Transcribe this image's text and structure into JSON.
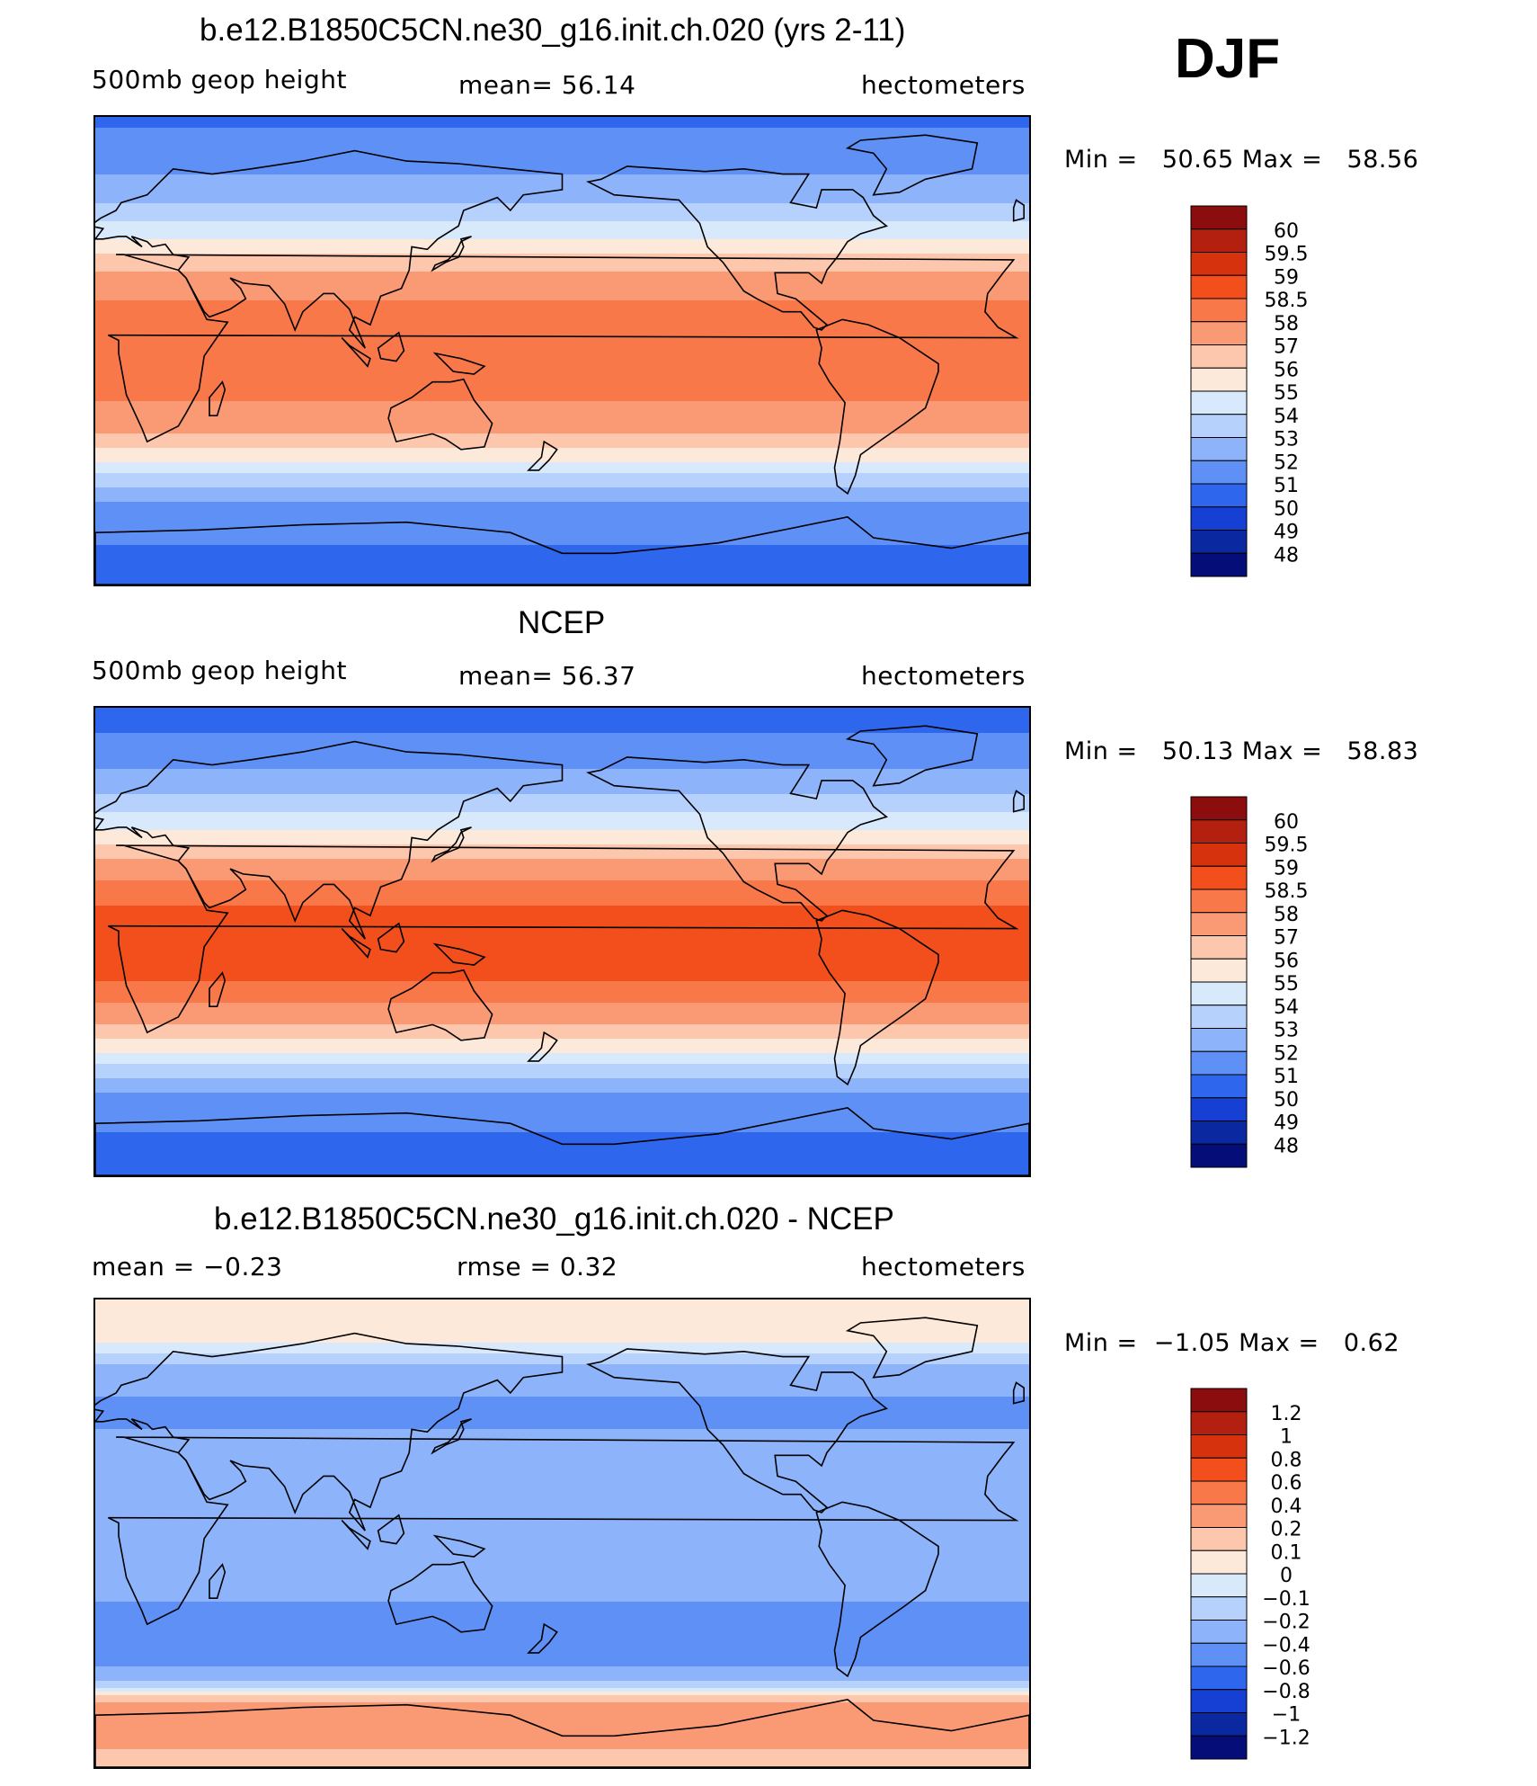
{
  "season": "DJF",
  "panels": [
    {
      "id": "model",
      "title": "b.e12.B1850C5CN.ne30_g16.init.ch.020 (yrs 2-11)",
      "left_label": "500mb geop height",
      "center_label": "mean=  56.14",
      "right_label": "hectometers",
      "minmax": "Min =   50.65 Max =   58.56",
      "colorbar_labels": [
        "60",
        "59.5",
        "59",
        "58.5",
        "58",
        "57",
        "56",
        "55",
        "54",
        "53",
        "52",
        "51",
        "50",
        "49",
        "48"
      ]
    },
    {
      "id": "ncep",
      "title": "NCEP",
      "left_label": "500mb geop height",
      "center_label": "mean=  56.37",
      "right_label": "hectometers",
      "minmax": "Min =   50.13 Max =   58.83",
      "colorbar_labels": [
        "60",
        "59.5",
        "59",
        "58.5",
        "58",
        "57",
        "56",
        "55",
        "54",
        "53",
        "52",
        "51",
        "50",
        "49",
        "48"
      ]
    },
    {
      "id": "diff",
      "title": "b.e12.B1850C5CN.ne30_g16.init.ch.020 - NCEP",
      "left_label": "mean =  −0.23",
      "center_label": "rmse =   0.32",
      "right_label": "hectometers",
      "minmax": "Min =  −1.05 Max =   0.62",
      "colorbar_labels": [
        "1.2",
        "1",
        "0.8",
        "0.6",
        "0.4",
        "0.2",
        "0.1",
        "0",
        "−0.1",
        "−0.2",
        "−0.4",
        "−0.6",
        "−0.8",
        "−1",
        "−1.2"
      ]
    }
  ],
  "colors": {
    "palette": [
      "#8c0d0d",
      "#b3200f",
      "#d6320e",
      "#f24f1c",
      "#f8784a",
      "#fa9a75",
      "#fcc7ad",
      "#fde9da",
      "#d8e9fb",
      "#b6d1fb",
      "#8db4fa",
      "#5e90f6",
      "#2f66ee",
      "#1640d4",
      "#0a28a0",
      "#040d78"
    ],
    "land_outline": "#000000"
  },
  "chart_data": [
    {
      "type": "heatmap",
      "title": "b.e12.B1850C5CN.ne30_g16.init.ch.020 (yrs 2-11)",
      "variable": "500mb geop height",
      "units": "hectometers",
      "mean": 56.14,
      "min": 50.65,
      "max": 58.56,
      "contour_levels": [
        48,
        49,
        50,
        51,
        52,
        53,
        54,
        55,
        56,
        57,
        58,
        58.5,
        59,
        59.5,
        60
      ],
      "zonal_profile": {
        "lat": [
          90,
          75,
          60,
          50,
          40,
          30,
          20,
          10,
          0,
          -10,
          -20,
          -30,
          -40,
          -50,
          -60,
          -75,
          -90
        ],
        "value": [
          50.8,
          51.5,
          52.6,
          53.9,
          55.5,
          57.1,
          58.0,
          58.2,
          58.3,
          58.2,
          58.0,
          57.2,
          55.5,
          53.4,
          51.7,
          51.0,
          50.8
        ]
      }
    },
    {
      "type": "heatmap",
      "title": "NCEP",
      "variable": "500mb geop height",
      "units": "hectometers",
      "mean": 56.37,
      "min": 50.13,
      "max": 58.83,
      "contour_levels": [
        48,
        49,
        50,
        51,
        52,
        53,
        54,
        55,
        56,
        57,
        58,
        58.5,
        59,
        59.5,
        60
      ],
      "zonal_profile": {
        "lat": [
          90,
          75,
          60,
          50,
          40,
          30,
          20,
          10,
          0,
          -10,
          -20,
          -30,
          -40,
          -50,
          -60,
          -75,
          -90
        ],
        "value": [
          50.4,
          51.3,
          52.5,
          53.9,
          55.6,
          57.3,
          58.3,
          58.6,
          58.7,
          58.6,
          58.4,
          57.4,
          55.6,
          53.4,
          51.6,
          50.9,
          50.6
        ]
      }
    },
    {
      "type": "heatmap",
      "title": "b.e12.B1850C5CN.ne30_g16.init.ch.020 - NCEP",
      "units": "hectometers",
      "mean": -0.23,
      "rmse": 0.32,
      "min": -1.05,
      "max": 0.62,
      "contour_levels": [
        -1.2,
        -1,
        -0.8,
        -0.6,
        -0.4,
        -0.2,
        -0.1,
        0,
        0.1,
        0.2,
        0.4,
        0.6,
        0.8,
        1,
        1.2
      ],
      "zonal_profile": {
        "lat": [
          90,
          75,
          60,
          45,
          30,
          15,
          0,
          -15,
          -30,
          -45,
          -55,
          -65,
          -75,
          -90
        ],
        "value": [
          0.1,
          0.05,
          -0.35,
          -0.45,
          -0.3,
          -0.25,
          -0.25,
          -0.25,
          -0.45,
          -0.6,
          -0.3,
          0.2,
          0.3,
          0.1
        ]
      }
    }
  ]
}
